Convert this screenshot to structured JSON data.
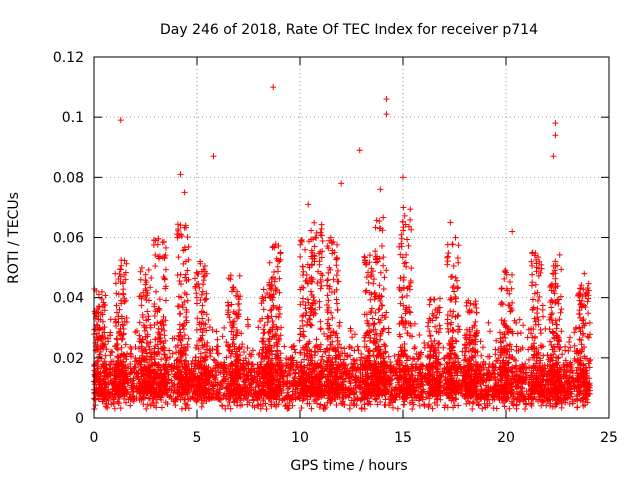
{
  "chart_data": {
    "type": "scatter",
    "title": "Day 246 of 2018, Rate Of TEC Index for receiver p714",
    "xlabel": "GPS time / hours",
    "ylabel": "ROTI / TECUs",
    "xlim": [
      0,
      25
    ],
    "ylim": [
      0,
      0.12
    ],
    "xticks": [
      0,
      5,
      10,
      15,
      20,
      25
    ],
    "xtick_labels": [
      "0",
      "5",
      "10",
      "15",
      "20",
      "25"
    ],
    "yticks": [
      0,
      0.02,
      0.04,
      0.06,
      0.08,
      0.1,
      0.12
    ],
    "ytick_labels": [
      "0",
      "0.02",
      "0.04",
      "0.06",
      "0.08",
      "0.1",
      "0.12"
    ],
    "grid": true,
    "marker": "+",
    "color": "#ff0000",
    "series": [
      {
        "name": "ROTI",
        "notable_points": [
          {
            "x": 1.3,
            "y": 0.099
          },
          {
            "x": 4.2,
            "y": 0.081
          },
          {
            "x": 4.4,
            "y": 0.075
          },
          {
            "x": 5.8,
            "y": 0.087
          },
          {
            "x": 8.7,
            "y": 0.11
          },
          {
            "x": 10.4,
            "y": 0.071
          },
          {
            "x": 12.0,
            "y": 0.078
          },
          {
            "x": 12.9,
            "y": 0.089
          },
          {
            "x": 13.9,
            "y": 0.076
          },
          {
            "x": 14.2,
            "y": 0.106
          },
          {
            "x": 14.2,
            "y": 0.101
          },
          {
            "x": 15.0,
            "y": 0.08
          },
          {
            "x": 17.3,
            "y": 0.065
          },
          {
            "x": 20.3,
            "y": 0.062
          },
          {
            "x": 22.4,
            "y": 0.098
          },
          {
            "x": 22.4,
            "y": 0.094
          },
          {
            "x": 22.3,
            "y": 0.087
          },
          {
            "x": 23.8,
            "y": 0.048
          }
        ],
        "bulk": {
          "x_range": [
            0,
            24
          ],
          "typical_range": [
            0.003,
            0.03
          ],
          "bursts": [
            {
              "x": 0.3,
              "peak": 0.045
            },
            {
              "x": 1.3,
              "peak": 0.053
            },
            {
              "x": 2.5,
              "peak": 0.05
            },
            {
              "x": 3.2,
              "peak": 0.06
            },
            {
              "x": 4.3,
              "peak": 0.065
            },
            {
              "x": 5.2,
              "peak": 0.055
            },
            {
              "x": 6.8,
              "peak": 0.048
            },
            {
              "x": 8.4,
              "peak": 0.045
            },
            {
              "x": 8.8,
              "peak": 0.058
            },
            {
              "x": 10.3,
              "peak": 0.06
            },
            {
              "x": 10.8,
              "peak": 0.065
            },
            {
              "x": 11.6,
              "peak": 0.06
            },
            {
              "x": 13.4,
              "peak": 0.055
            },
            {
              "x": 13.9,
              "peak": 0.07
            },
            {
              "x": 15.1,
              "peak": 0.07
            },
            {
              "x": 16.5,
              "peak": 0.04
            },
            {
              "x": 17.4,
              "peak": 0.06
            },
            {
              "x": 18.3,
              "peak": 0.04
            },
            {
              "x": 20.0,
              "peak": 0.05
            },
            {
              "x": 21.5,
              "peak": 0.058
            },
            {
              "x": 22.4,
              "peak": 0.055
            },
            {
              "x": 23.8,
              "peak": 0.045
            }
          ]
        }
      }
    ]
  }
}
